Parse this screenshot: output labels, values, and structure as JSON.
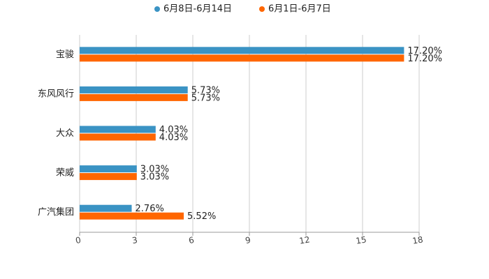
{
  "chart_data": {
    "type": "bar",
    "orientation": "horizontal",
    "categories": [
      "宝骏",
      "东风风行",
      "大众",
      "荣威",
      "广汽集团"
    ],
    "series": [
      {
        "name": "6月8日-6月14日",
        "color": "#3a93c4",
        "values": [
          17.2,
          5.73,
          4.03,
          3.03,
          2.76
        ],
        "value_labels": [
          "17.20%",
          "5.73%",
          "4.03%",
          "3.03%",
          "2.76%"
        ]
      },
      {
        "name": "6月1日-6月7日",
        "color": "#ff6600",
        "values": [
          17.2,
          5.73,
          4.03,
          3.03,
          5.52
        ],
        "value_labels": [
          "17.20%",
          "5.73%",
          "4.03%",
          "3.03%",
          "5.52%"
        ]
      }
    ],
    "xlim": [
      0,
      18
    ],
    "xticks": [
      0,
      3,
      6,
      9,
      12,
      15,
      18
    ],
    "grid": true
  }
}
